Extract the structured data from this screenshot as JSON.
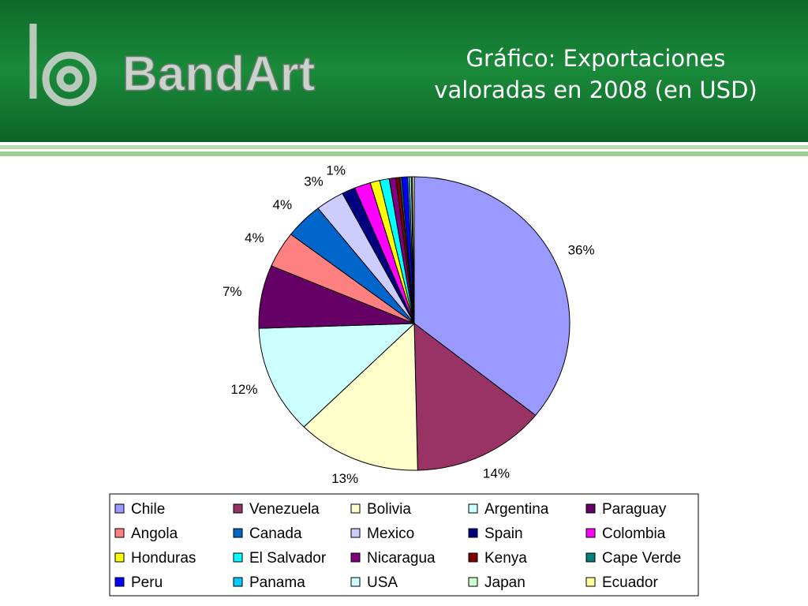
{
  "header": {
    "logo_text": "BandArt"
  },
  "chart_data": {
    "type": "pie",
    "title": "Gráfico: Exportaciones valoradas en 2008 (en USD)",
    "categories": [
      "Chile",
      "Venezuela",
      "Bolivia",
      "Argentina",
      "Paraguay",
      "Angola",
      "Canada",
      "Mexico",
      "Spain",
      "Colombia",
      "Honduras",
      "El Salvador",
      "Nicaragua",
      "Kenya",
      "Cape Verde",
      "Peru",
      "Panama",
      "USA",
      "Japan",
      "Ecuador"
    ],
    "values": [
      36,
      14,
      13,
      12,
      7,
      4,
      4,
      3,
      1.4,
      1.7,
      1,
      1,
      0.7,
      0.4,
      0.2,
      0.6,
      0.2,
      0.2,
      0.1,
      0.2
    ],
    "value_labels": [
      "36%",
      "14%",
      "13%",
      "12%",
      "7%",
      "4%",
      "4%",
      "3%",
      "1%",
      null,
      null,
      null,
      null,
      null,
      null,
      null,
      null,
      null,
      null,
      null
    ],
    "colors": [
      "#9999ff",
      "#993366",
      "#ffffcc",
      "#ccffff",
      "#660066",
      "#ff8080",
      "#0066cc",
      "#ccccff",
      "#000080",
      "#ff00ff",
      "#ffff00",
      "#00ffff",
      "#800080",
      "#800000",
      "#008080",
      "#0000ff",
      "#00ccff",
      "#ccffff",
      "#ccffcc",
      "#ffff99"
    ],
    "legend": "bottom"
  }
}
